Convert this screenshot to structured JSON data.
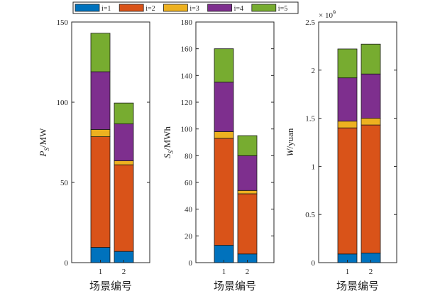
{
  "legend": [
    {
      "label": "i=1",
      "color": "#0072BD"
    },
    {
      "label": "i=2",
      "color": "#D95319"
    },
    {
      "label": "i=3",
      "color": "#EDB120"
    },
    {
      "label": "i=4",
      "color": "#7E2F8E"
    },
    {
      "label": "i=5",
      "color": "#77AC30"
    }
  ],
  "chart_data": [
    {
      "type": "bar",
      "stacked": true,
      "categories": [
        "1",
        "2"
      ],
      "xlabel": "场景编号",
      "ylabel_main": "P",
      "ylabel_sub": "S",
      "ylabel_tail": "/MW",
      "ylim": [
        0,
        150
      ],
      "yticks": [
        0,
        50,
        100,
        150
      ],
      "ytick_labels": [
        "0",
        "50",
        "100",
        "150"
      ],
      "exponent_label": "",
      "series": [
        {
          "name": "i=1",
          "values": [
            9.5,
            7
          ]
        },
        {
          "name": "i=2",
          "values": [
            69,
            54
          ]
        },
        {
          "name": "i=3",
          "values": [
            4.5,
            2.5
          ]
        },
        {
          "name": "i=4",
          "values": [
            36,
            23
          ]
        },
        {
          "name": "i=5",
          "values": [
            24,
            13
          ]
        }
      ]
    },
    {
      "type": "bar",
      "stacked": true,
      "categories": [
        "1",
        "2"
      ],
      "xlabel": "场景编号",
      "ylabel_main": "S",
      "ylabel_sub": "S",
      "ylabel_tail": "/MWh",
      "ylim": [
        0,
        180
      ],
      "yticks": [
        0,
        20,
        40,
        60,
        80,
        100,
        120,
        140,
        160,
        180
      ],
      "ytick_labels": [
        "0",
        "20",
        "40",
        "60",
        "80",
        "100",
        "120",
        "140",
        "160",
        "180"
      ],
      "exponent_label": "",
      "series": [
        {
          "name": "i=1",
          "values": [
            13,
            6.5
          ]
        },
        {
          "name": "i=2",
          "values": [
            80,
            45
          ]
        },
        {
          "name": "i=3",
          "values": [
            5,
            2.5
          ]
        },
        {
          "name": "i=4",
          "values": [
            37,
            26
          ]
        },
        {
          "name": "i=5",
          "values": [
            25,
            15
          ]
        }
      ]
    },
    {
      "type": "bar",
      "stacked": true,
      "categories": [
        "1",
        "2"
      ],
      "xlabel": "场景编号",
      "ylabel_main": "W",
      "ylabel_sub": "",
      "ylabel_tail": "/yuan",
      "ylim": [
        0,
        2.5
      ],
      "yticks": [
        0,
        0.5,
        1,
        1.5,
        2,
        2.5
      ],
      "ytick_labels": [
        "0",
        "0.5",
        "1",
        "1.5",
        "2",
        "2.5"
      ],
      "exponent_label": "× 10",
      "exponent_power": "9",
      "series": [
        {
          "name": "i=1",
          "values": [
            0.09,
            0.1
          ]
        },
        {
          "name": "i=2",
          "values": [
            1.31,
            1.33
          ]
        },
        {
          "name": "i=3",
          "values": [
            0.07,
            0.07
          ]
        },
        {
          "name": "i=4",
          "values": [
            0.45,
            0.46
          ]
        },
        {
          "name": "i=5",
          "values": [
            0.3,
            0.31
          ]
        }
      ]
    }
  ]
}
